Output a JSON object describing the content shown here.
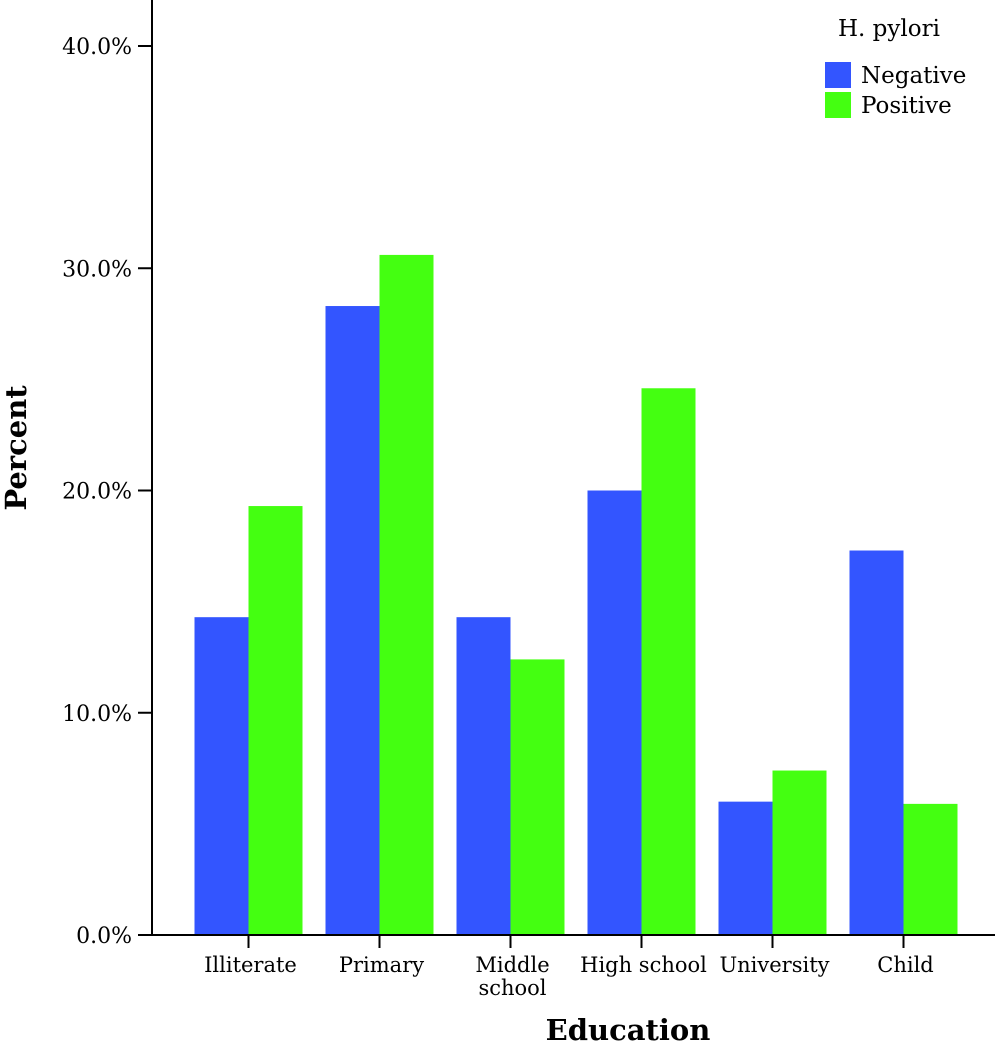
{
  "chart_data": {
    "type": "bar",
    "title": "",
    "xlabel": "Education",
    "ylabel": "Percent",
    "categories": [
      "Illiterate",
      "Primary",
      "Middle school",
      "High school",
      "University",
      "Child"
    ],
    "category_labels": [
      [
        "Illiterate"
      ],
      [
        "Primary"
      ],
      [
        "Middle",
        "school"
      ],
      [
        "High school"
      ],
      [
        "University"
      ],
      [
        "Child"
      ]
    ],
    "series": [
      {
        "name": "Negative",
        "color": "#3355ff",
        "values": [
          14.3,
          28.3,
          14.3,
          20.0,
          6.0,
          17.3
        ]
      },
      {
        "name": "Positive",
        "color": "#44ff11",
        "values": [
          19.3,
          30.6,
          12.4,
          24.6,
          7.4,
          5.9
        ]
      }
    ],
    "ylim": [
      0,
      42
    ],
    "yticks": [
      0,
      10,
      20,
      30,
      40
    ],
    "ytick_labels": [
      "0.0%",
      "10.0%",
      "20.0%",
      "30.0%",
      "40.0%"
    ],
    "grid": false,
    "legend": {
      "title": "H. pylori",
      "position": "top-right"
    }
  }
}
